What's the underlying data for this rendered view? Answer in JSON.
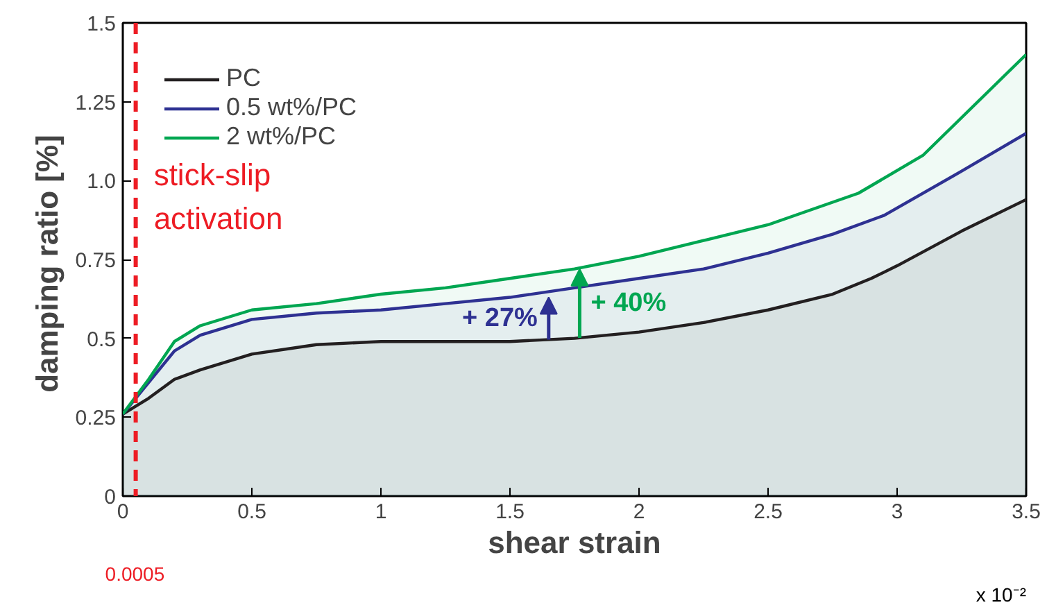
{
  "chart_data": {
    "type": "area",
    "xlabel": "shear strain",
    "ylabel": "damping ratio  [%]",
    "xlim": [
      0,
      3.5
    ],
    "ylim": [
      0,
      1.5
    ],
    "xticks": [
      0,
      0.5,
      1,
      1.5,
      2,
      2.5,
      3,
      3.5
    ],
    "yticks": [
      0,
      0.25,
      0.5,
      0.75,
      {
        "value": 1,
        "label": "1.0"
      },
      1.25,
      1.5
    ],
    "grid": false,
    "legend": "top left",
    "series": [
      {
        "name": "PC",
        "color": "#231f20",
        "x": [
          0,
          0.1,
          0.2,
          0.3,
          0.5,
          0.75,
          1,
          1.5,
          1.75,
          2,
          2.25,
          2.5,
          2.75,
          2.9,
          3,
          3.25,
          3.5
        ],
        "values": [
          0.26,
          0.31,
          0.37,
          0.4,
          0.45,
          0.48,
          0.49,
          0.49,
          0.5,
          0.52,
          0.55,
          0.59,
          0.64,
          0.69,
          0.73,
          0.84,
          0.94
        ]
      },
      {
        "name": "0.5 wt%/PC",
        "color": "#2e3192",
        "x": [
          0,
          0.1,
          0.2,
          0.3,
          0.5,
          0.75,
          1,
          1.25,
          1.5,
          1.75,
          2,
          2.25,
          2.5,
          2.75,
          2.95,
          3.25,
          3.5
        ],
        "values": [
          0.26,
          0.36,
          0.46,
          0.51,
          0.56,
          0.58,
          0.59,
          0.61,
          0.63,
          0.66,
          0.69,
          0.72,
          0.77,
          0.83,
          0.89,
          1.03,
          1.15
        ]
      },
      {
        "name": "2 wt%/PC",
        "color": "#00a651",
        "x": [
          0,
          0.1,
          0.2,
          0.3,
          0.5,
          0.75,
          1,
          1.25,
          1.5,
          1.75,
          2,
          2.25,
          2.5,
          2.85,
          3.1,
          3.3,
          3.5
        ],
        "values": [
          0.26,
          0.37,
          0.49,
          0.54,
          0.59,
          0.61,
          0.64,
          0.66,
          0.69,
          0.72,
          0.76,
          0.81,
          0.86,
          0.96,
          1.08,
          1.24,
          1.4
        ]
      }
    ],
    "ref_lines": [
      {
        "axis": "x",
        "value": 0.05,
        "color": "#ed1c24",
        "line_style": "dashed"
      }
    ],
    "annotations": [
      "stick-slip activation",
      {
        "text": "+ 27%",
        "x": 1.65,
        "y": 0.63
      },
      {
        "text": "+ 40%",
        "x": 1.77,
        "y": 0.72
      },
      "0.0005",
      "x 10⁻²"
    ]
  }
}
